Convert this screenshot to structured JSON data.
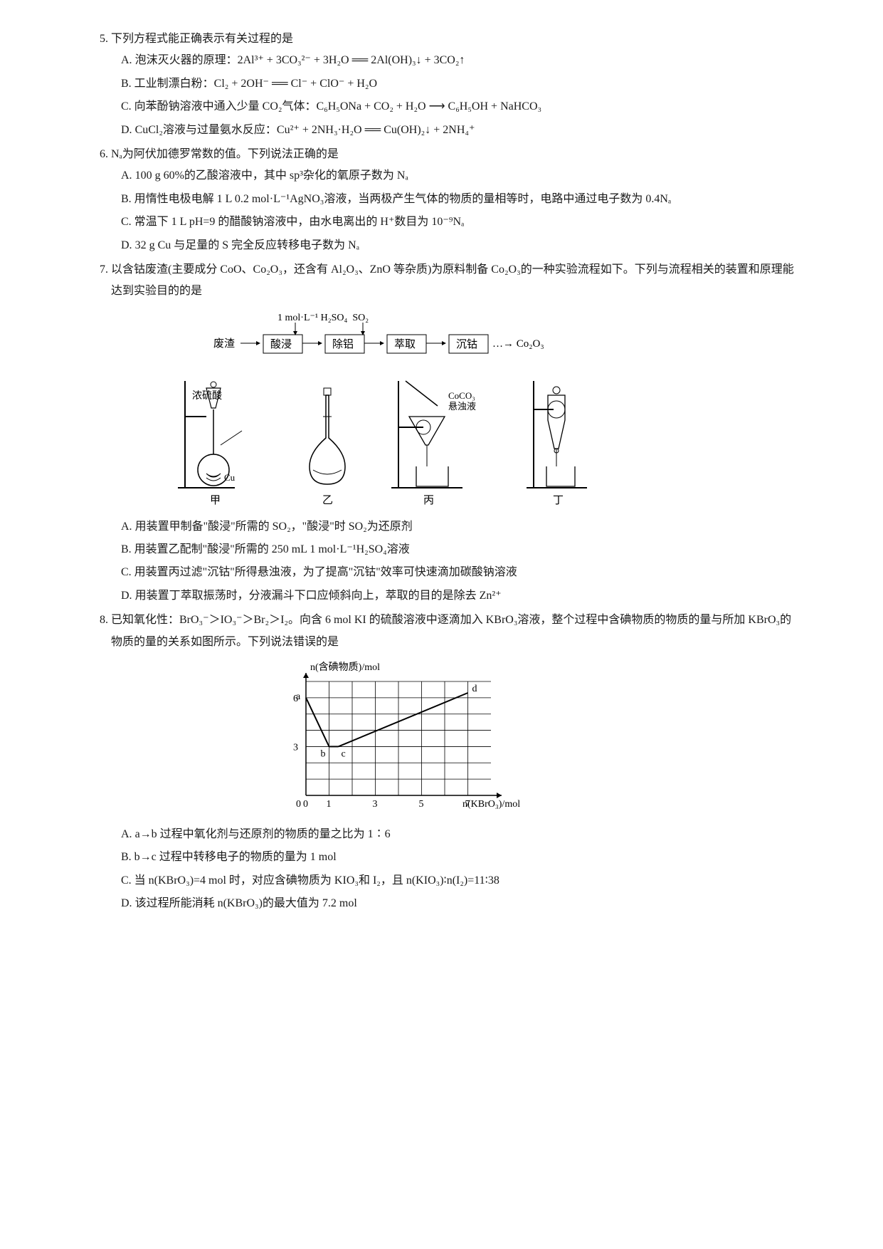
{
  "q5": {
    "num": "5.",
    "stem": "下列方程式能正确表示有关过程的是",
    "opts": {
      "A": "泡沫灭火器的原理：2Al³⁺ + 3CO₃²⁻ + 3H₂O ══ 2Al(OH)₃↓ + 3CO₂↑",
      "B": "工业制漂白粉：Cl₂ + 2OH⁻ ══ Cl⁻ + ClO⁻ + H₂O",
      "C": "向苯酚钠溶液中通入少量 CO₂气体：C₆H₅ONa + CO₂ + H₂O ⟶ C₆H₅OH + NaHCO₃",
      "D": "CuCl₂溶液与过量氨水反应：Cu²⁺ + 2NH₃·H₂O ══ Cu(OH)₂↓ + 2NH₄⁺"
    }
  },
  "q6": {
    "num": "6.",
    "stem": "Nₐ为阿伏加德罗常数的值。下列说法正确的是",
    "opts": {
      "A": "100 g 60%的乙酸溶液中，其中 sp³杂化的氧原子数为 Nₐ",
      "B": "用惰性电极电解 1 L 0.2 mol·L⁻¹AgNO₃溶液，当两极产生气体的物质的量相等时，电路中通过电子数为 0.4Nₐ",
      "C": "常温下 1 L pH=9 的醋酸钠溶液中，由水电离出的 H⁺数目为 10⁻⁹Nₐ",
      "D": "32 g Cu 与足量的 S 完全反应转移电子数为 Nₐ"
    }
  },
  "q7": {
    "num": "7.",
    "stem": "以含钴废渣(主要成分 CoO、Co₂O₃，还含有 Al₂O₃、ZnO 等杂质)为原料制备 Co₂O₃的一种实验流程如下。下列与流程相关的装置和原理能达到实验目的的是",
    "flow": {
      "input_top": "1 mol·L⁻¹ H₂SO₄  SO₂",
      "boxes": [
        "废渣",
        "酸浸",
        "除铝",
        "萃取",
        "沉钴",
        "Co₂O₃"
      ],
      "arrow": "→",
      "dots": "…→"
    },
    "apparatus_labels": {
      "left_reagent": "浓硫酸",
      "left_solid": "Cu",
      "right_suspension": "CoCO₃悬浊液",
      "jia": "甲",
      "yi": "乙",
      "bing": "丙",
      "ding": "丁"
    },
    "opts": {
      "A": "用装置甲制备\"酸浸\"所需的 SO₂，\"酸浸\"时 SO₂为还原剂",
      "B": "用装置乙配制\"酸浸\"所需的 250 mL 1 mol·L⁻¹H₂SO₄溶液",
      "C": "用装置丙过滤\"沉钴\"所得悬浊液，为了提高\"沉钴\"效率可快速滴加碳酸钠溶液",
      "D": "用装置丁萃取振荡时，分液漏斗下口应倾斜向上，萃取的目的是除去 Zn²⁺"
    }
  },
  "q8": {
    "num": "8.",
    "stem": "已知氧化性：BrO₃⁻＞IO₃⁻＞Br₂＞I₂。向含 6 mol KI 的硫酸溶液中逐滴加入 KBrO₃溶液，整个过程中含碘物质的物质的量与所加 KBrO₃的物质的量的关系如图所示。下列说法错误的是",
    "chart": {
      "type": "line",
      "ylabel": "n(含碘物质)/mol",
      "xlabel": "n(KBrO₃)/mol",
      "xlim": [
        0,
        8
      ],
      "ylim": [
        0,
        7
      ],
      "xticks": [
        0,
        1,
        3,
        5,
        7
      ],
      "yticks": [
        3,
        6
      ],
      "points": {
        "a": [
          0,
          6
        ],
        "b": [
          1,
          3
        ],
        "c": [
          1.4,
          3
        ],
        "d": [
          7,
          6.3
        ]
      },
      "segments": [
        [
          "a",
          "b"
        ],
        [
          "b",
          "c"
        ],
        [
          "c",
          "d"
        ]
      ],
      "line_color": "#000000",
      "grid_color": "#000000",
      "background_color": "#ffffff",
      "axis_fontsize": 14,
      "label_fontsize": 14
    },
    "opts": {
      "A": "a→b 过程中氧化剂与还原剂的物质的量之比为 1∶6",
      "B": "b→c 过程中转移电子的物质的量为 1 mol",
      "C": "当 n(KBrO₃)=4 mol 时，对应含碘物质为 KIO₃和 I₂，且 n(KIO₃)∶n(I₂)=11∶38",
      "D": "该过程所能消耗 n(KBrO₃)的最大值为 7.2 mol"
    }
  }
}
